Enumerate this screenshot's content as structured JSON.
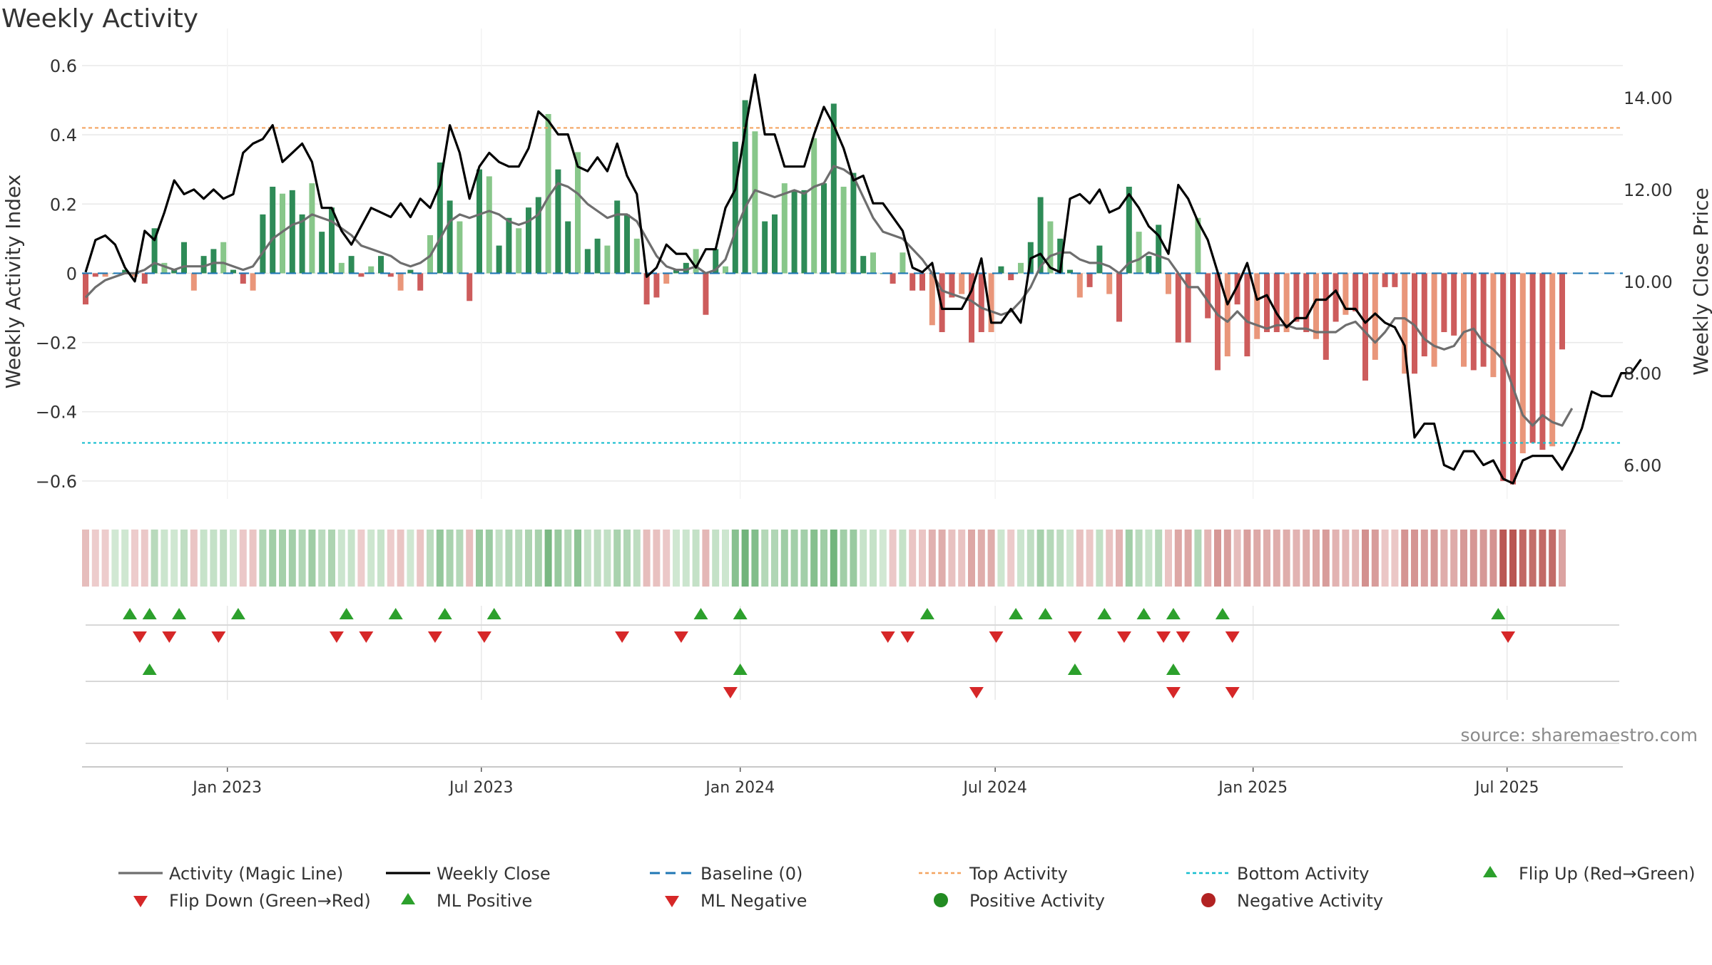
{
  "chart_data": {
    "type": "bar",
    "title": "Weekly Activity",
    "ylabel_left": "Weekly Activity Index",
    "ylabel_right": "Weekly Close Price",
    "source": "source: sharemaestro.com",
    "ylim_left": [
      -0.66,
      0.6
    ],
    "ylim_right": [
      5.2,
      14.7
    ],
    "yticks_left": [
      0.6,
      0.4,
      0.2,
      0,
      -0.2,
      -0.4,
      -0.6
    ],
    "yticks_left_labels": [
      "0.6",
      "0.4",
      "0.2",
      "0",
      "−0.2",
      "−0.4",
      "−0.6"
    ],
    "yticks_right": [
      14,
      12,
      10,
      8,
      6
    ],
    "yticks_right_labels": [
      "14.00",
      "12.00",
      "10.00",
      "8.00",
      "6.00"
    ],
    "x_start_week": -23.5,
    "x_end_week": 132.5,
    "xticks": [
      {
        "week": -9.1,
        "label": "Jan 2023"
      },
      {
        "week": 16.7,
        "label": "Jul 2023"
      },
      {
        "week": 43.0,
        "label": "Jan 2024"
      },
      {
        "week": 68.9,
        "label": "Jul 2024"
      },
      {
        "week": 95.1,
        "label": "Jan 2025"
      },
      {
        "week": 120.9,
        "label": "Jul 2025"
      }
    ],
    "top_activity": 0.42,
    "bottom_activity": -0.49,
    "baseline": 0,
    "activity": [
      -0.09,
      -0.01,
      -0.01,
      0.0,
      0.01,
      -0.01,
      -0.03,
      0.13,
      0.03,
      0.01,
      0.09,
      -0.05,
      0.05,
      0.07,
      0.09,
      0.01,
      -0.03,
      -0.05,
      0.17,
      0.25,
      0.23,
      0.24,
      0.17,
      0.26,
      0.12,
      0.19,
      0.03,
      0.05,
      -0.01,
      0.02,
      0.05,
      -0.01,
      -0.05,
      0.01,
      -0.05,
      0.11,
      0.32,
      0.21,
      0.15,
      -0.08,
      0.3,
      0.28,
      0.08,
      0.16,
      0.13,
      0.19,
      0.22,
      0.46,
      0.3,
      0.15,
      0.35,
      0.07,
      0.1,
      0.08,
      0.21,
      0.17,
      0.1,
      -0.09,
      -0.07,
      -0.03,
      0.01,
      0.03,
      0.07,
      -0.12,
      0.07,
      0.02,
      0.38,
      0.5,
      0.41,
      0.15,
      0.17,
      0.26,
      0.24,
      0.24,
      0.39,
      0.26,
      0.49,
      0.25,
      0.29,
      0.05,
      0.06,
      0.0,
      -0.03,
      0.06,
      -0.05,
      -0.05,
      -0.15,
      -0.17,
      -0.07,
      -0.06,
      -0.2,
      -0.17,
      -0.17,
      0.02,
      -0.02,
      0.03,
      0.09,
      0.22,
      0.15,
      0.1,
      0.01,
      -0.07,
      -0.04,
      0.08,
      -0.06,
      -0.14,
      0.25,
      0.12,
      0.05,
      0.14,
      -0.06,
      -0.2,
      -0.2,
      0.16,
      -0.13,
      -0.28,
      -0.24,
      -0.09,
      -0.24,
      -0.19,
      -0.17,
      -0.17,
      -0.17,
      -0.14,
      -0.17,
      -0.19,
      -0.25,
      -0.14,
      -0.12,
      -0.11,
      -0.31,
      -0.25,
      -0.04,
      -0.04,
      -0.29,
      -0.29,
      -0.24,
      -0.27,
      -0.17,
      -0.18,
      -0.27,
      -0.28,
      -0.27,
      -0.3,
      -0.6,
      -0.61,
      -0.52,
      -0.49,
      -0.51,
      -0.5,
      -0.22
    ],
    "magic_line": [
      -0.07,
      -0.04,
      -0.02,
      -0.01,
      0.0,
      0.0,
      0.01,
      0.03,
      0.02,
      0.01,
      0.02,
      0.02,
      0.02,
      0.03,
      0.03,
      0.02,
      0.01,
      0.02,
      0.06,
      0.1,
      0.12,
      0.14,
      0.15,
      0.17,
      0.16,
      0.15,
      0.13,
      0.11,
      0.08,
      0.07,
      0.06,
      0.05,
      0.03,
      0.02,
      0.03,
      0.05,
      0.1,
      0.15,
      0.17,
      0.16,
      0.17,
      0.18,
      0.17,
      0.15,
      0.14,
      0.15,
      0.17,
      0.22,
      0.26,
      0.25,
      0.23,
      0.2,
      0.18,
      0.16,
      0.17,
      0.17,
      0.15,
      0.1,
      0.05,
      0.02,
      0.01,
      0.01,
      0.02,
      0.0,
      0.01,
      0.04,
      0.12,
      0.19,
      0.24,
      0.23,
      0.22,
      0.23,
      0.24,
      0.23,
      0.25,
      0.26,
      0.31,
      0.3,
      0.28,
      0.22,
      0.16,
      0.12,
      0.11,
      0.1,
      0.07,
      0.04,
      0.0,
      -0.05,
      -0.06,
      -0.07,
      -0.08,
      -0.1,
      -0.11,
      -0.12,
      -0.11,
      -0.08,
      -0.04,
      0.02,
      0.05,
      0.06,
      0.06,
      0.04,
      0.03,
      0.03,
      0.02,
      0.0,
      0.03,
      0.04,
      0.06,
      0.05,
      0.04,
      0.0,
      -0.04,
      -0.04,
      -0.08,
      -0.12,
      -0.14,
      -0.11,
      -0.14,
      -0.15,
      -0.16,
      -0.15,
      -0.15,
      -0.16,
      -0.16,
      -0.17,
      -0.17,
      -0.17,
      -0.15,
      -0.14,
      -0.17,
      -0.2,
      -0.17,
      -0.13,
      -0.13,
      -0.15,
      -0.19,
      -0.21,
      -0.22,
      -0.21,
      -0.17,
      -0.16,
      -0.2,
      -0.22,
      -0.25,
      -0.33,
      -0.41,
      -0.44,
      -0.41,
      -0.43,
      -0.44,
      -0.39
    ],
    "weekly_close": [
      10.2,
      10.9,
      11.0,
      10.8,
      10.3,
      10.0,
      11.1,
      10.9,
      11.5,
      12.2,
      11.9,
      12.0,
      11.8,
      12.0,
      11.8,
      11.9,
      12.8,
      13.0,
      13.1,
      13.4,
      12.6,
      12.8,
      13.0,
      12.6,
      11.6,
      11.6,
      11.1,
      10.8,
      11.2,
      11.6,
      11.5,
      11.4,
      11.7,
      11.4,
      11.8,
      11.6,
      12.1,
      13.4,
      12.8,
      11.8,
      12.5,
      12.8,
      12.6,
      12.5,
      12.5,
      12.9,
      13.7,
      13.5,
      13.2,
      13.2,
      12.5,
      12.4,
      12.7,
      12.4,
      13.0,
      12.3,
      11.9,
      10.1,
      10.3,
      10.8,
      10.6,
      10.6,
      10.3,
      10.7,
      10.7,
      11.6,
      12.0,
      13.3,
      14.5,
      13.2,
      13.2,
      12.5,
      12.5,
      12.5,
      13.2,
      13.8,
      13.4,
      12.9,
      12.2,
      12.3,
      11.7,
      11.7,
      11.4,
      11.1,
      10.3,
      10.2,
      10.4,
      9.4,
      9.4,
      9.4,
      9.8,
      10.5,
      9.1,
      9.1,
      9.4,
      9.1,
      10.5,
      10.6,
      10.3,
      10.2,
      11.8,
      11.9,
      11.7,
      12.0,
      11.5,
      11.6,
      11.9,
      11.6,
      11.2,
      11.0,
      10.6,
      12.1,
      11.8,
      11.3,
      10.9,
      10.2,
      9.5,
      9.9,
      10.4,
      9.6,
      9.7,
      9.3,
      9.0,
      9.2,
      9.2,
      9.6,
      9.6,
      9.8,
      9.4,
      9.4,
      9.1,
      9.3,
      9.1,
      9.0,
      8.6,
      6.6,
      6.9,
      6.9,
      6.0,
      5.9,
      6.3,
      6.3,
      6.0,
      6.1,
      5.7,
      5.6,
      6.1,
      6.2,
      6.2,
      6.2,
      5.9,
      6.3,
      6.8,
      7.6,
      7.5,
      7.5,
      8.0,
      8.0,
      8.3
    ],
    "flip_up_weeks": [
      -19,
      -17,
      -14,
      -8,
      3,
      8,
      13,
      18,
      39,
      43,
      62,
      71,
      74,
      80,
      84,
      87,
      92,
      120
    ],
    "flip_down_weeks": [
      -18,
      -15,
      -10,
      2,
      5,
      12,
      17,
      31,
      37,
      58,
      60,
      69,
      77,
      82,
      86,
      88,
      93,
      121
    ],
    "ml_positive_weeks": [
      -17,
      43,
      77,
      87
    ],
    "ml_negative_weeks": [
      42,
      67,
      87,
      93
    ],
    "legend": [
      {
        "label": "Activity (Magic Line)",
        "symbol": "line",
        "color": "#6e6e6e"
      },
      {
        "label": "Weekly Close",
        "symbol": "line",
        "color": "#000000"
      },
      {
        "label": "Baseline (0)",
        "symbol": "dashed",
        "color": "#1f77b4"
      },
      {
        "label": "Top Activity",
        "symbol": "dotted",
        "color": "#f4a460"
      },
      {
        "label": "Bottom Activity",
        "symbol": "dotted",
        "color": "#17becf"
      },
      {
        "label": "Flip Up (Red→Green)",
        "symbol": "triangle-up",
        "color": "#2ca02c"
      },
      {
        "label": "Flip Down (Green→Red)",
        "symbol": "triangle-down",
        "color": "#d62728"
      },
      {
        "label": "ML Positive",
        "symbol": "triangle-up",
        "color": "#2ca02c"
      },
      {
        "label": "ML Negative",
        "symbol": "triangle-down",
        "color": "#d62728"
      },
      {
        "label": "Positive Activity",
        "symbol": "circle",
        "color": "#228b22"
      },
      {
        "label": "Negative Activity",
        "symbol": "circle",
        "color": "#b22222"
      }
    ],
    "colors": {
      "pos_dark": "#2e8b57",
      "pos_light": "#88c78a",
      "neg_dark": "#cd5c5c",
      "neg_light": "#e9967a",
      "close": "#000000",
      "magic": "#6e6e6e",
      "grid": "#e8e8e8"
    }
  }
}
